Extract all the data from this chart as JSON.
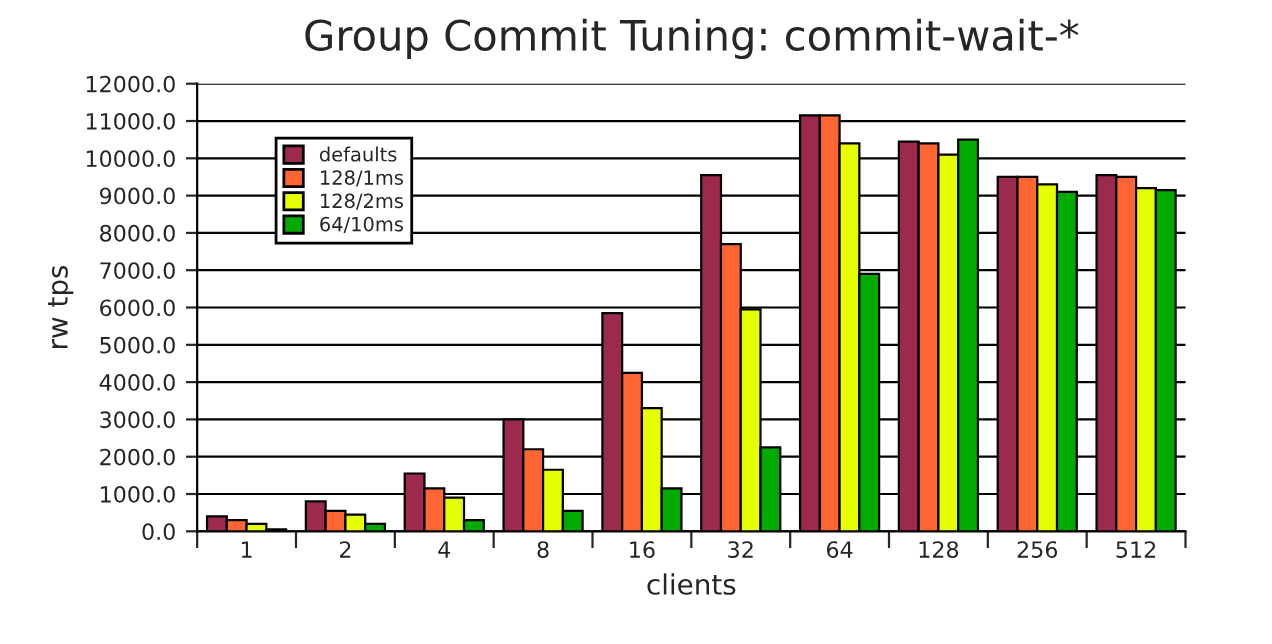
{
  "chart_data": {
    "type": "bar",
    "title": "Group Commit Tuning: commit-wait-*",
    "xlabel": "clients",
    "ylabel": "rw tps",
    "categories": [
      "1",
      "2",
      "4",
      "8",
      "16",
      "32",
      "64",
      "128",
      "256",
      "512"
    ],
    "series": [
      {
        "name": "defaults",
        "color": "#9b2a4c",
        "values": [
          400,
          800,
          1550,
          3000,
          5850,
          9550,
          11150,
          10450,
          9500,
          9550
        ]
      },
      {
        "name": "128/1ms",
        "color": "#ff6633",
        "values": [
          300,
          550,
          1150,
          2200,
          4250,
          7700,
          11150,
          10400,
          9500,
          9500
        ]
      },
      {
        "name": "128/2ms",
        "color": "#e6ff00",
        "values": [
          200,
          450,
          900,
          1650,
          3300,
          5950,
          10400,
          10100,
          9300,
          9200
        ]
      },
      {
        "name": "64/10ms",
        "color": "#00aa00",
        "values": [
          50,
          200,
          300,
          550,
          1150,
          2250,
          6900,
          10500,
          9100,
          9150
        ]
      }
    ],
    "ylim": [
      0,
      12000
    ],
    "yticks": [
      {
        "value": 0,
        "label": "0.0"
      },
      {
        "value": 1000,
        "label": "1000.0"
      },
      {
        "value": 2000,
        "label": "2000.0"
      },
      {
        "value": 3000,
        "label": "3000.0"
      },
      {
        "value": 4000,
        "label": "4000.0"
      },
      {
        "value": 5000,
        "label": "5000.0"
      },
      {
        "value": 6000,
        "label": "6000.0"
      },
      {
        "value": 7000,
        "label": "7000.0"
      },
      {
        "value": 8000,
        "label": "8000.0"
      },
      {
        "value": 9000,
        "label": "9000.0"
      },
      {
        "value": 10000,
        "label": "10000.0"
      },
      {
        "value": 11000,
        "label": "11000.0"
      },
      {
        "value": 12000,
        "label": "12000.0"
      }
    ],
    "grid": "y",
    "legend": "top left"
  }
}
